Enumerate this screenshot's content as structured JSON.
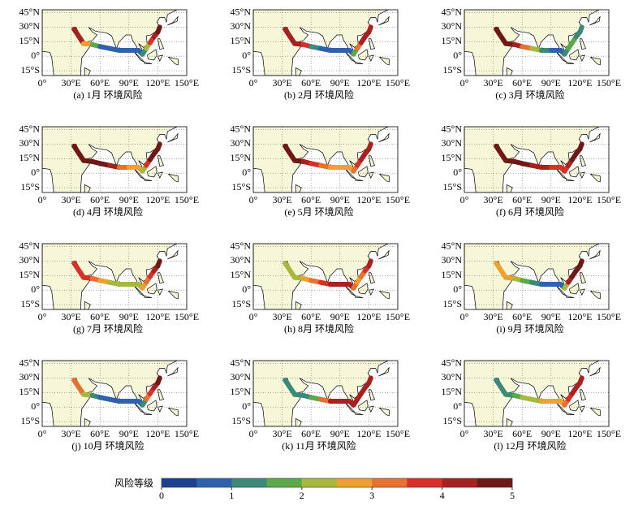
{
  "map_axes": {
    "xlim": [
      0,
      150
    ],
    "ylim": [
      -20,
      48
    ],
    "xticks": [
      {
        "value": 0,
        "label": "0°"
      },
      {
        "value": 30,
        "label": "30°E"
      },
      {
        "value": 60,
        "label": "60°E"
      },
      {
        "value": 90,
        "label": "90°E"
      },
      {
        "value": 120,
        "label": "120°E"
      },
      {
        "value": 150,
        "label": "150°E"
      }
    ],
    "yticks": [
      {
        "value": 45,
        "label": "45°N"
      },
      {
        "value": 30,
        "label": "30°N"
      },
      {
        "value": 15,
        "label": "15°N"
      },
      {
        "value": 0,
        "label": "0°"
      },
      {
        "value": -15,
        "label": "15°S"
      }
    ],
    "grid": true
  },
  "panels": [
    {
      "caption": "(a) 1月  环境风险",
      "route_risk": [
        4,
        2.5,
        1.5,
        0.5,
        0.5,
        0.5,
        0.5,
        0.5,
        1,
        2,
        3.5,
        4,
        4.5
      ]
    },
    {
      "caption": "(b) 2月  环境风险",
      "route_risk": [
        4,
        4,
        3.5,
        1,
        0.5,
        0.5,
        0.5,
        0.5,
        1.5,
        3,
        4,
        4,
        4
      ]
    },
    {
      "caption": "(c) 3月  环境风险",
      "route_risk": [
        4.5,
        4.5,
        4,
        3,
        2,
        1,
        0.5,
        0.5,
        1,
        1.5,
        1.5,
        1,
        1
      ]
    },
    {
      "caption": "(d) 4月  环境风险",
      "route_risk": [
        4.5,
        4.5,
        4.5,
        4.5,
        4,
        3,
        2.5,
        2.5,
        2,
        3.5,
        4.5,
        4.5,
        4.5
      ]
    },
    {
      "caption": "(e) 5月  环境风险",
      "route_risk": [
        4.5,
        4.5,
        4,
        3.5,
        3,
        2.5,
        2.5,
        2.5,
        3,
        3.5,
        4,
        4,
        4
      ]
    },
    {
      "caption": "(f) 6月  环境风险",
      "route_risk": [
        4.5,
        4.5,
        4.5,
        4.5,
        4,
        4,
        3.5,
        3.5,
        3.5,
        4,
        4.5,
        4.5,
        4.5
      ]
    },
    {
      "caption": "(g) 7月  环境风险",
      "route_risk": [
        3.5,
        3.5,
        3,
        2.5,
        2,
        2,
        2,
        2,
        2.5,
        3,
        3.5,
        4,
        4.5
      ]
    },
    {
      "caption": "(h) 8月  环境风险",
      "route_risk": [
        2,
        2,
        2.5,
        3,
        3.5,
        4,
        4,
        4,
        3,
        2.5,
        3,
        3.5,
        4
      ]
    },
    {
      "caption": "(i) 9月  环境风险",
      "route_risk": [
        2.5,
        2.5,
        2,
        1.5,
        1,
        0.5,
        0.5,
        0.5,
        2,
        4,
        4.5,
        4.5,
        4.5
      ]
    },
    {
      "caption": "(j) 10月  环境风险",
      "route_risk": [
        3,
        2,
        1,
        0.5,
        0.5,
        0.5,
        0.5,
        0.5,
        1,
        3,
        3.5,
        4,
        4.5
      ]
    },
    {
      "caption": "(k) 11月  环境风险",
      "route_risk": [
        1,
        1,
        1,
        1.5,
        3,
        4,
        4,
        4,
        4,
        4,
        4,
        4,
        4
      ]
    },
    {
      "caption": "(l) 12月  环境风险",
      "route_risk": [
        1,
        1,
        1.5,
        2,
        2,
        2.5,
        2.5,
        2.5,
        3,
        3.5,
        4,
        4,
        4
      ]
    }
  ],
  "colorbar": {
    "label": "风险等级",
    "lim": [
      0,
      5
    ],
    "ticks": [
      0,
      1,
      2,
      3,
      4,
      5
    ],
    "colors": [
      "#1f3f8f",
      "#2e62ad",
      "#3a8a7a",
      "#5aaa48",
      "#a8b83a",
      "#f0a030",
      "#e87030",
      "#d83028",
      "#a82020",
      "#701818"
    ]
  }
}
